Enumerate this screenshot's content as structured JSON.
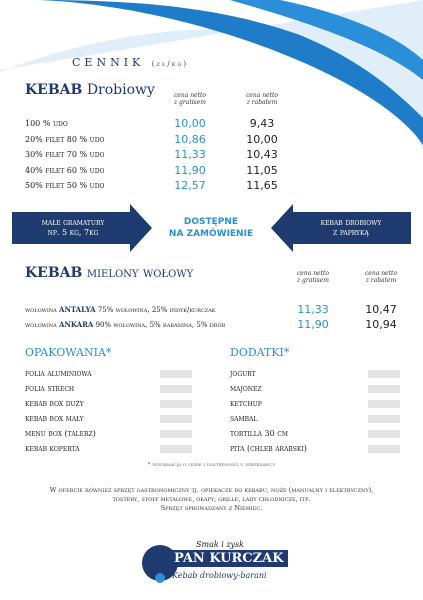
{
  "header": {
    "title": "CENNIK",
    "unit": "(zł/kg)"
  },
  "drobiowy": {
    "brand": "KEBAB",
    "name": "Drobiowy",
    "col1": [
      "cena netto",
      "z gratisem"
    ],
    "col2": [
      "cena netto",
      "z rabatem"
    ],
    "rows": [
      [
        "100 % udo",
        "10,00",
        "9,43"
      ],
      [
        "20% filet 80 % udo",
        "10,86",
        "10,00"
      ],
      [
        "30% filet 70 % udo",
        "11,33",
        "10,43"
      ],
      [
        "40% filet 60 % udo",
        "11,90",
        "11,05"
      ],
      [
        "50% filet 50 % udo",
        "12,57",
        "11,65"
      ]
    ]
  },
  "banner": {
    "left": [
      "małe gramatury",
      "np. 5 kg, 7kg"
    ],
    "center": [
      "DOSTĘPNE",
      "NA ZAMÓWIENIE"
    ],
    "right": [
      "kebab drobiowy",
      "z papryką"
    ]
  },
  "wolowy": {
    "brand": "KEBAB",
    "name": "mielony wołowy",
    "col1": [
      "cena netto",
      "z gratisem"
    ],
    "col2": [
      "cena netto",
      "z rabatem"
    ],
    "rows": [
      [
        "wołowina",
        "ANTALYA",
        "75% wołowina, 25% indyk/kurczak",
        "11,33",
        "10,47"
      ],
      [
        "wołowina",
        "ANKARA",
        "90% wołowina, 5% baranina, 5% drób",
        "11,90",
        "10,94"
      ]
    ]
  },
  "opakowania": {
    "title": "OPAKOWANIA*",
    "items": [
      "folia aluminiowa",
      "folia strech",
      "kebab box duży",
      "kebab box mały",
      "menu box (talerz)",
      "kebab koperta"
    ]
  },
  "dodatki": {
    "title": "DODATKI*",
    "items": [
      "jogurt",
      "majonez",
      "ketchup",
      "sambal",
      "tortilla 30 cm",
      "pita (chleb arabski)"
    ]
  },
  "footnote": "* informacja o cenie i dostępności u sprzedawcy",
  "offer": [
    "W ofercie również sprzęt gastronomiczny tj. opiekacze do kebabu, noże (manualny i elektryczny),",
    "tostery, stoły metalowe, okapy, grille, lady chłodnicze, itp.",
    "Sprzęt sprowadzany z Niemiec."
  ],
  "logo": {
    "slogan": "Smak i zysk",
    "name": "PAN KURCZAK",
    "tagline": "Kebab drobiowy-barani"
  }
}
